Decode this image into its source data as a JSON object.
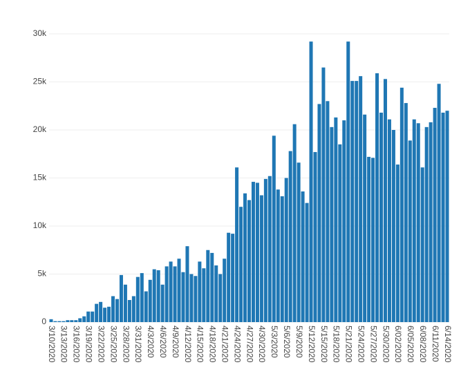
{
  "chart_data": {
    "type": "bar",
    "color": "#1f77b4",
    "grid": true,
    "categories": [
      "3/10/2020",
      null,
      null,
      "3/13/2020",
      null,
      null,
      "3/16/2020",
      null,
      null,
      "3/19/2020",
      null,
      null,
      "3/22/2020",
      null,
      null,
      "3/25/2020",
      null,
      null,
      "3/28/2020",
      null,
      null,
      "3/31/2020",
      null,
      null,
      "4/3/2020",
      null,
      null,
      "4/6/2020",
      null,
      null,
      "4/9/2020",
      null,
      null,
      "4/12/2020",
      null,
      null,
      "4/15/2020",
      null,
      null,
      "4/18/2020",
      null,
      null,
      "4/21/2020",
      null,
      null,
      "4/24/2020",
      null,
      null,
      "4/27/2020",
      null,
      null,
      "4/30/2020",
      null,
      null,
      "5/3/2020",
      null,
      null,
      "5/6/2020",
      null,
      null,
      "5/9/2020",
      null,
      null,
      "5/12/2020",
      null,
      null,
      "5/15/2020",
      null,
      null,
      "5/18/2020",
      null,
      null,
      "5/21/2020",
      null,
      null,
      "5/24/2020",
      null,
      null,
      "5/27/2020",
      null,
      null,
      "5/30/2020",
      null,
      null,
      "6/02/2020",
      null,
      null,
      "6/05/2020",
      null,
      null,
      "6/08/2020",
      null,
      null,
      "6/11/2020",
      null,
      null,
      "6/14/2020"
    ],
    "values": [
      300,
      100,
      100,
      100,
      200,
      200,
      200,
      400,
      600,
      1100,
      1100,
      1900,
      2100,
      1500,
      1600,
      2700,
      2400,
      4900,
      3900,
      2300,
      2700,
      4700,
      5100,
      3200,
      4400,
      5500,
      5400,
      3900,
      5800,
      6300,
      5800,
      6600,
      5200,
      7900,
      5000,
      4800,
      6300,
      5600,
      7500,
      7200,
      5900,
      5000,
      6600,
      9300,
      9200,
      16100,
      12000,
      13400,
      12700,
      14600,
      14500,
      13200,
      14900,
      15200,
      19400,
      13800,
      13100,
      15000,
      17800,
      20600,
      16600,
      13600,
      12400,
      29200,
      17700,
      22700,
      26500,
      23000,
      20300,
      21300,
      18500,
      21000,
      29200,
      25100,
      25100,
      25600,
      21600,
      17200,
      17100,
      25900,
      21800,
      25300,
      21100,
      20000,
      16400,
      24400,
      22800,
      18900,
      21100,
      20700,
      16100,
      20300,
      20800,
      22300,
      24800,
      21800,
      22000
    ],
    "ylim": [
      0,
      30000
    ],
    "yticks": [
      0,
      {
        "value": 5000,
        "label": "5k"
      },
      {
        "value": 10000,
        "label": "10k"
      },
      {
        "value": 15000,
        "label": "15k"
      },
      {
        "value": 20000,
        "label": "20k"
      },
      {
        "value": 25000,
        "label": "25k"
      },
      {
        "value": 30000,
        "label": "30k"
      }
    ]
  }
}
